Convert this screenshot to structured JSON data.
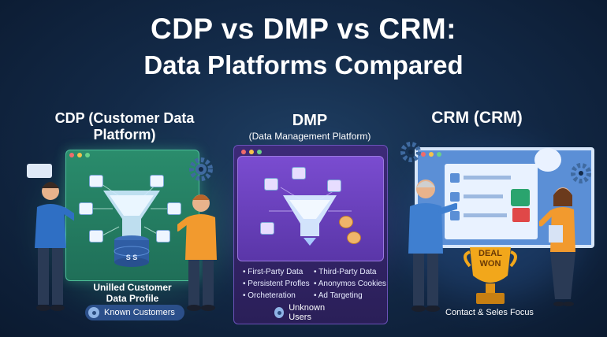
{
  "title": {
    "line1": "CDP vs DMP vs CRM:",
    "line2": "Data Platforms Compared"
  },
  "cdp": {
    "heading": "CDP (Customer Data Platform)",
    "caption_line1": "Unilled Customer",
    "caption_line2": "Data Profile",
    "database_label": "S S",
    "footer": "Known Customers",
    "accent": "#2f9a78"
  },
  "dmp": {
    "heading": "DMP",
    "subheading": "(Data Management Platform)",
    "bullets_left": [
      "First-Party Data",
      "Persistent Profles",
      "Orcheteration"
    ],
    "bullets_right": [
      "Third-Party Data",
      "Anonymos Cookies",
      "Ad Targeting"
    ],
    "footer": "Unknown Users",
    "accent": "#6a3fb8"
  },
  "crm": {
    "heading": "CRM (CRM)",
    "trophy_line1": "DEAL",
    "trophy_line2": "WON",
    "footer": "Contact & Seles Focus",
    "accent": "#2d5c9e"
  },
  "colors": {
    "background": "#132a48",
    "trophy": "#f2a71b"
  }
}
